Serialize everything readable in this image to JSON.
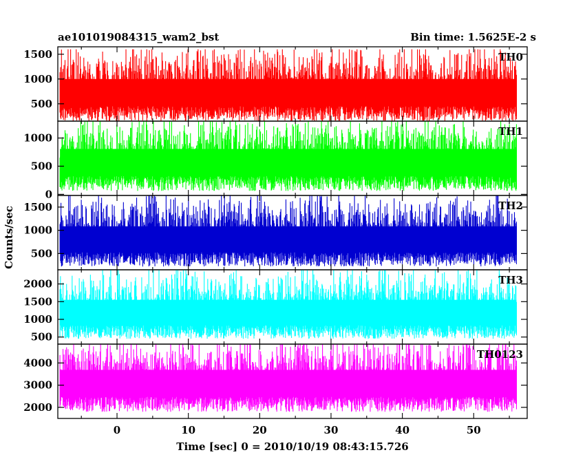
{
  "chart_data": {
    "type": "line",
    "title": "ae101019084315_wam2_bst",
    "subtitle": "Bin time: 1.5625E-2 s",
    "xlabel": "Time [sec] 0 = 2010/10/19 08:43:15.726",
    "ylabel": "Counts/sec",
    "xlim": [
      -8.3,
      57.5
    ],
    "x_ticks": [
      0,
      10,
      20,
      30,
      40,
      50
    ],
    "x_data_range": [
      -8.0,
      56.0
    ],
    "bin_time_s": 0.015625,
    "grid": false,
    "panels": [
      {
        "name": "TH0",
        "color": "#ff0000",
        "ylim": [
          150,
          1650
        ],
        "y_ticks": [
          500,
          1000,
          1500
        ],
        "base": 150,
        "mean": 820,
        "spread": 300,
        "peak": 1600
      },
      {
        "name": "TH1",
        "color": "#00ff00",
        "ylim": [
          -20,
          1300
        ],
        "y_ticks": [
          0,
          500,
          1000
        ],
        "base": 60,
        "mean": 650,
        "spread": 260,
        "peak": 1300
      },
      {
        "name": "TH2",
        "color": "#0000d0",
        "ylim": [
          150,
          1750
        ],
        "y_ticks": [
          500,
          1000,
          1500
        ],
        "base": 220,
        "mean": 900,
        "spread": 310,
        "peak": 1750
      },
      {
        "name": "TH3",
        "color": "#00ffff",
        "ylim": [
          300,
          2400
        ],
        "y_ticks": [
          500,
          1000,
          1500,
          2000
        ],
        "base": 450,
        "mean": 1300,
        "spread": 420,
        "peak": 2400
      },
      {
        "name": "TH0123",
        "color": "#ff00ff",
        "ylim": [
          1500,
          4850
        ],
        "y_ticks": [
          2000,
          3000,
          4000
        ],
        "base": 1800,
        "mean": 3300,
        "spread": 650,
        "peak": 4850
      }
    ]
  }
}
